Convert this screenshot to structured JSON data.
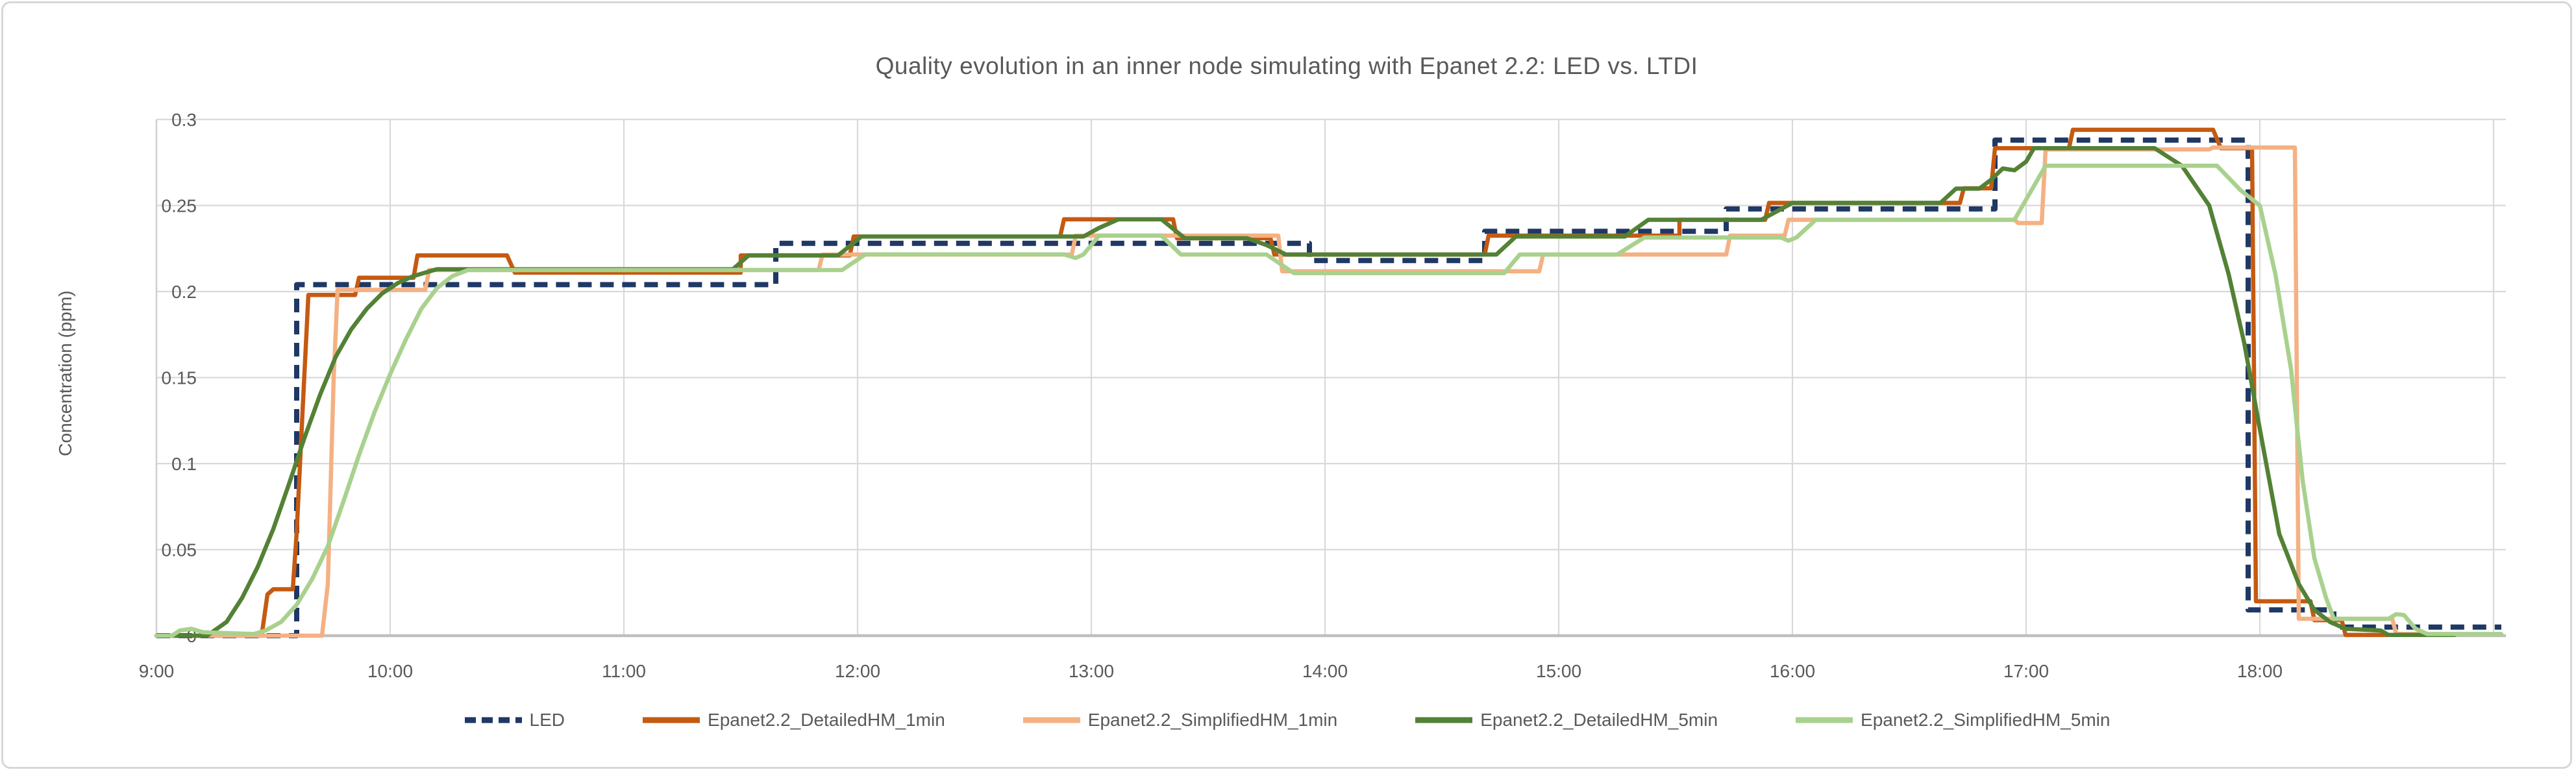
{
  "chart_data": {
    "type": "line",
    "title": "Quality evolution in an inner node simulating with Epanet 2.2: LED vs. LTDI",
    "xlabel": "",
    "ylabel": "Concentration (ppm)",
    "x_unit": "minutes after 9:00",
    "xlim": [
      0,
      603
    ],
    "ylim": [
      0,
      0.3
    ],
    "x_tick_labels": [
      "9:00",
      "10:00",
      "11:00",
      "12:00",
      "13:00",
      "14:00",
      "15:00",
      "16:00",
      "17:00",
      "18:00"
    ],
    "x_tick_minutes": [
      0,
      60,
      120,
      180,
      240,
      300,
      360,
      420,
      480,
      540
    ],
    "x_gridline_minutes": [
      0,
      60,
      120,
      180,
      240,
      300,
      360,
      420,
      480,
      540,
      600
    ],
    "y_ticks": [
      0,
      0.05,
      0.1,
      0.15,
      0.2,
      0.25,
      0.3
    ],
    "y_tick_labels": [
      "0",
      "0.05",
      "0.1",
      "0.15",
      "0.2",
      "0.25",
      "0.3"
    ],
    "grid": true,
    "legend_position": "bottom",
    "series": [
      {
        "name": "LED",
        "color": "#1F3864",
        "style": "dashed",
        "width": 8,
        "points": [
          [
            0,
            0
          ],
          [
            36,
            0
          ],
          [
            36,
            0.204
          ],
          [
            159,
            0.204
          ],
          [
            159,
            0.228
          ],
          [
            296,
            0.228
          ],
          [
            296,
            0.218
          ],
          [
            341,
            0.218
          ],
          [
            341,
            0.235
          ],
          [
            403,
            0.235
          ],
          [
            403,
            0.248
          ],
          [
            472,
            0.248
          ],
          [
            472,
            0.288
          ],
          [
            537,
            0.288
          ],
          [
            537,
            0.015
          ],
          [
            559,
            0.015
          ],
          [
            559,
            0.005
          ],
          [
            602,
            0.005
          ]
        ]
      },
      {
        "name": "Epanet2.2_DetailedHM_1min",
        "color": "#C55A11",
        "style": "solid",
        "width": 6.5,
        "points": [
          [
            0,
            0
          ],
          [
            27,
            0
          ],
          [
            28.5,
            0.024
          ],
          [
            30,
            0.027
          ],
          [
            35,
            0.027
          ],
          [
            36,
            0.06
          ],
          [
            37.5,
            0.13
          ],
          [
            39,
            0.198
          ],
          [
            51,
            0.198
          ],
          [
            52,
            0.208
          ],
          [
            66,
            0.208
          ],
          [
            67,
            0.221
          ],
          [
            90,
            0.221
          ],
          [
            92,
            0.211
          ],
          [
            150,
            0.211
          ],
          [
            150,
            0.221
          ],
          [
            178,
            0.221
          ],
          [
            179,
            0.232
          ],
          [
            232,
            0.232
          ],
          [
            233,
            0.242
          ],
          [
            261,
            0.242
          ],
          [
            262,
            0.231
          ],
          [
            286,
            0.231
          ],
          [
            287,
            0.2215
          ],
          [
            341,
            0.2215
          ],
          [
            342,
            0.2325
          ],
          [
            391,
            0.2325
          ],
          [
            391,
            0.2417
          ],
          [
            413,
            0.2417
          ],
          [
            414,
            0.2515
          ],
          [
            463,
            0.2515
          ],
          [
            464,
            0.26
          ],
          [
            471,
            0.26
          ],
          [
            472,
            0.2833
          ],
          [
            491,
            0.2833
          ],
          [
            492,
            0.294
          ],
          [
            528,
            0.294
          ],
          [
            530,
            0.2833
          ],
          [
            538,
            0.2833
          ],
          [
            539,
            0.02
          ],
          [
            553,
            0.02
          ],
          [
            554,
            0.009
          ],
          [
            561,
            0.009
          ],
          [
            562,
            0.0005
          ],
          [
            585,
            0.0005
          ]
        ]
      },
      {
        "name": "Epanet2.2_SimplifiedHM_1min",
        "color": "#F4B183",
        "style": "solid",
        "width": 6.5,
        "points": [
          [
            0,
            0
          ],
          [
            42.5,
            0
          ],
          [
            44,
            0.03
          ],
          [
            45.5,
            0.15
          ],
          [
            46.5,
            0.201
          ],
          [
            69,
            0.201
          ],
          [
            70,
            0.2125
          ],
          [
            170,
            0.2125
          ],
          [
            171,
            0.2215
          ],
          [
            235,
            0.2215
          ],
          [
            236,
            0.2325
          ],
          [
            288,
            0.2325
          ],
          [
            289,
            0.2118
          ],
          [
            355,
            0.2118
          ],
          [
            356,
            0.2215
          ],
          [
            403,
            0.2215
          ],
          [
            404,
            0.2325
          ],
          [
            418,
            0.2325
          ],
          [
            419,
            0.2417
          ],
          [
            477,
            0.2417
          ],
          [
            478,
            0.2398
          ],
          [
            484,
            0.2398
          ],
          [
            485,
            0.2826
          ],
          [
            527,
            0.2826
          ],
          [
            528,
            0.2837
          ],
          [
            549,
            0.2837
          ],
          [
            550,
            0.0098
          ],
          [
            574,
            0.0098
          ],
          [
            575,
            0.001
          ],
          [
            582,
            0.001
          ],
          [
            583,
            0.0005
          ],
          [
            584,
            0.0005
          ]
        ]
      },
      {
        "name": "Epanet2.2_DetailedHM_5min",
        "color": "#538135",
        "style": "solid",
        "width": 6.5,
        "points": [
          [
            0,
            0
          ],
          [
            13,
            0
          ],
          [
            18,
            0.008
          ],
          [
            22,
            0.022
          ],
          [
            26,
            0.04
          ],
          [
            30,
            0.062
          ],
          [
            34,
            0.088
          ],
          [
            38,
            0.115
          ],
          [
            42,
            0.14
          ],
          [
            46,
            0.162
          ],
          [
            50,
            0.178
          ],
          [
            54,
            0.19
          ],
          [
            58,
            0.199
          ],
          [
            62,
            0.205
          ],
          [
            66,
            0.209
          ],
          [
            72,
            0.213
          ],
          [
            148,
            0.213
          ],
          [
            152,
            0.221
          ],
          [
            175,
            0.221
          ],
          [
            181,
            0.232
          ],
          [
            238,
            0.232
          ],
          [
            242,
            0.237
          ],
          [
            247,
            0.242
          ],
          [
            258,
            0.242
          ],
          [
            264,
            0.231
          ],
          [
            280,
            0.231
          ],
          [
            285,
            0.227
          ],
          [
            290,
            0.2215
          ],
          [
            344,
            0.2215
          ],
          [
            349,
            0.232
          ],
          [
            377,
            0.232
          ],
          [
            383,
            0.2417
          ],
          [
            412,
            0.2417
          ],
          [
            420,
            0.2515
          ],
          [
            458,
            0.2515
          ],
          [
            462,
            0.2598
          ],
          [
            468,
            0.2598
          ],
          [
            471,
            0.265
          ],
          [
            474,
            0.2715
          ],
          [
            477,
            0.2705
          ],
          [
            480,
            0.2755
          ],
          [
            482,
            0.2833
          ],
          [
            513,
            0.2833
          ],
          [
            520,
            0.2731
          ],
          [
            527,
            0.25
          ],
          [
            532,
            0.21
          ],
          [
            536,
            0.17
          ],
          [
            540,
            0.12
          ],
          [
            545,
            0.059
          ],
          [
            550,
            0.03
          ],
          [
            554,
            0.015
          ],
          [
            558,
            0.008
          ],
          [
            562,
            0.004
          ],
          [
            571,
            0.003
          ],
          [
            573,
            0.0005
          ],
          [
            590,
            0.0005
          ]
        ]
      },
      {
        "name": "Epanet2.2_SimplifiedHM_5min",
        "color": "#A9D18E",
        "style": "solid",
        "width": 6.5,
        "points": [
          [
            0,
            0
          ],
          [
            4,
            0
          ],
          [
            6,
            0.003
          ],
          [
            9,
            0.004
          ],
          [
            12,
            0.002
          ],
          [
            25,
            0.001
          ],
          [
            28,
            0.003
          ],
          [
            32,
            0.008
          ],
          [
            36,
            0.018
          ],
          [
            40,
            0.033
          ],
          [
            44,
            0.052
          ],
          [
            48,
            0.078
          ],
          [
            52,
            0.105
          ],
          [
            56,
            0.13
          ],
          [
            60,
            0.152
          ],
          [
            64,
            0.172
          ],
          [
            68,
            0.19
          ],
          [
            72,
            0.202
          ],
          [
            76,
            0.209
          ],
          [
            80,
            0.2125
          ],
          [
            176,
            0.2125
          ],
          [
            182,
            0.2216
          ],
          [
            233,
            0.2216
          ],
          [
            236,
            0.2195
          ],
          [
            238,
            0.2216
          ],
          [
            242,
            0.2325
          ],
          [
            258,
            0.2325
          ],
          [
            263,
            0.2215
          ],
          [
            285,
            0.2215
          ],
          [
            292,
            0.2107
          ],
          [
            346,
            0.2107
          ],
          [
            350,
            0.2215
          ],
          [
            375,
            0.2215
          ],
          [
            382,
            0.2314
          ],
          [
            417,
            0.2314
          ],
          [
            419,
            0.2295
          ],
          [
            421,
            0.2314
          ],
          [
            426,
            0.2417
          ],
          [
            477,
            0.2417
          ],
          [
            485,
            0.2731
          ],
          [
            529,
            0.2731
          ],
          [
            535,
            0.259
          ],
          [
            540,
            0.25
          ],
          [
            544,
            0.21
          ],
          [
            548,
            0.155
          ],
          [
            551,
            0.09
          ],
          [
            554,
            0.045
          ],
          [
            557,
            0.022
          ],
          [
            559,
            0.0098
          ],
          [
            573,
            0.0098
          ],
          [
            575,
            0.0125
          ],
          [
            577,
            0.012
          ],
          [
            580,
            0.004
          ],
          [
            583,
            0.001
          ],
          [
            602,
            0.001
          ]
        ]
      }
    ]
  },
  "colors": {
    "grid": "#D9D9D9",
    "axis_baseline": "#BFBFBF",
    "axis_left": "#D0D0D0",
    "tick_text": "#595959",
    "title_text": "#595959",
    "background": "#FFFFFF",
    "frame_border": "#D7D7D7"
  }
}
